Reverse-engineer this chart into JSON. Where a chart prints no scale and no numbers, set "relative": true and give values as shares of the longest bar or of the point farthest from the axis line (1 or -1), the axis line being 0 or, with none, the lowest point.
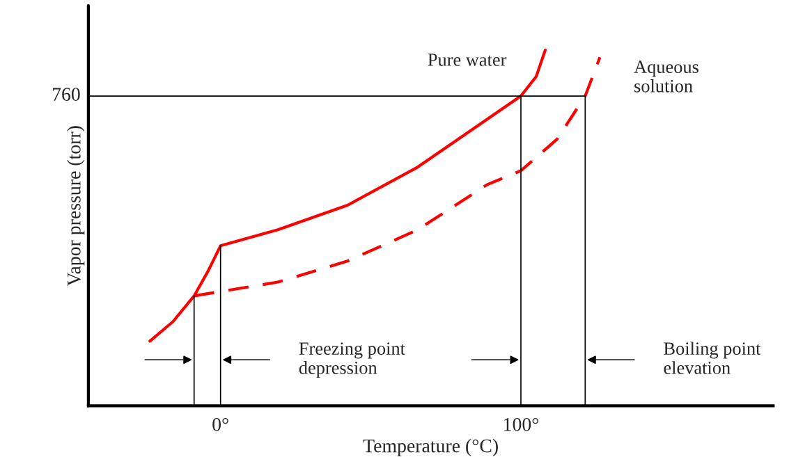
{
  "chart_data": {
    "type": "line",
    "relative": true,
    "xlabel": "Temperature (°C)",
    "ylabel": "Vapor pressure (torr)",
    "xlim": [
      -44,
      184
    ],
    "xticks": [
      {
        "value": 0,
        "label": "0°"
      },
      {
        "value": 100,
        "label": "100°"
      }
    ],
    "grid": false,
    "ref_lines": [
      {
        "axis": "x",
        "value": -44,
        "color": "#000000"
      }
    ],
    "series": [
      {
        "name": "Pure water",
        "color": "#ff0000",
        "line_style": "solid",
        "x": [
          -23.5,
          -15.8,
          -8.8,
          -4.2,
          0,
          19.1,
          42.3,
          65.6,
          84.2,
          100,
          105.1,
          108.1
        ],
        "values": [
          0.182,
          0.237,
          0.309,
          0.378,
          0.45,
          0.495,
          0.564,
          0.671,
          0.779,
          0.871,
          0.926,
          1.0
        ]
      },
      {
        "name": "Aqueous\nsolution",
        "color": "#ff0000",
        "line_style": "dashed",
        "x": [
          -8.8,
          19.1,
          42.3,
          65.6,
          88.8,
          100,
          112.1,
          121.4,
          126.3
        ],
        "values": [
          0.309,
          0.348,
          0.407,
          0.495,
          0.622,
          0.661,
          0.75,
          0.871,
          0.98
        ]
      },
      {
        "color": "#000000",
        "line_style": "solid",
        "x": [
          -8.8,
          -8.8
        ],
        "values": [
          0,
          0.309
        ]
      },
      {
        "color": "#000000",
        "line_style": "solid",
        "x": [
          0,
          0
        ],
        "values": [
          0,
          0.45
        ]
      },
      {
        "color": "#000000",
        "line_style": "solid",
        "x": [
          100,
          100
        ],
        "values": [
          0,
          0.871
        ]
      },
      {
        "color": "#000000",
        "line_style": "solid",
        "x": [
          121.4,
          121.4
        ],
        "values": [
          0,
          0.871
        ]
      },
      {
        "color": "#000000",
        "line_style": "solid",
        "x": [
          -44,
          121.4
        ],
        "values": [
          0.871,
          0.871
        ]
      }
    ],
    "annotations": [
      {
        "text": "760",
        "x": -44,
        "y": 0.871
      },
      "Freezing point\ndepression",
      "Boiling point\nelevation"
    ]
  }
}
